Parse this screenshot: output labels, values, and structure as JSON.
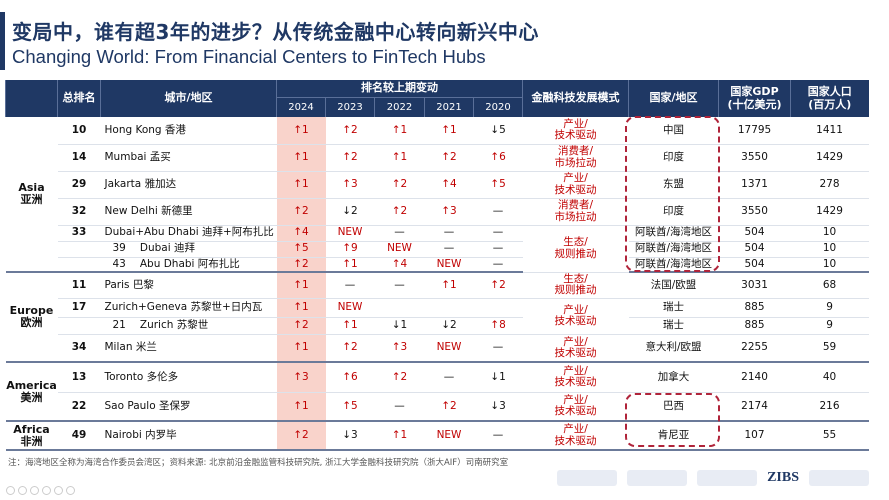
{
  "title_cn": "变局中，谁有超3年的进步？从传统金融中心转向新兴中心",
  "title_en": "Changing World: From Financial Centers to FinTech Hubs",
  "headers": {
    "rank": "总排名",
    "city": "城市/地区",
    "change": "排名较上期变动",
    "years": [
      "2024",
      "2023",
      "2022",
      "2021",
      "2020"
    ],
    "mode": "金融科技发展模式",
    "country": "国家/地区",
    "gdp": "国家GDP\n(十亿美元)",
    "pop": "国家人口\n(百万人)"
  },
  "regions": [
    {
      "label": "Asia\n亚洲",
      "span": 7
    },
    {
      "label": "Europe\n欧洲",
      "span": 4
    },
    {
      "label": "America\n美洲",
      "span": 2
    },
    {
      "label": "Africa\n非洲",
      "span": 1
    }
  ],
  "rows": [
    {
      "rank": "10",
      "city": "Hong Kong  香港",
      "changes": [
        "↑1",
        "↑2",
        "↑1",
        "↑1",
        "↓5"
      ],
      "mode": "产业/\n技术驱动",
      "mode_span": 1,
      "country": "中国",
      "gdp": "17795",
      "pop": "1411"
    },
    {
      "rank": "14",
      "city": "Mumbai  孟买",
      "changes": [
        "↑1",
        "↑2",
        "↑1",
        "↑2",
        "↑6"
      ],
      "mode": "消费者/\n市场拉动",
      "mode_span": 1,
      "country": "印度",
      "gdp": "3550",
      "pop": "1429"
    },
    {
      "rank": "29",
      "city": "Jakarta  雅加达",
      "changes": [
        "↑1",
        "↑3",
        "↑2",
        "↑4",
        "↑5"
      ],
      "mode": "产业/\n技术驱动",
      "mode_span": 1,
      "country": "东盟",
      "gdp": "1371",
      "pop": "278"
    },
    {
      "rank": "32",
      "city": "New Delhi 新德里",
      "changes": [
        "↑2",
        "↓2",
        "↑2",
        "↑3",
        "—"
      ],
      "mode": "消费者/\n市场拉动",
      "mode_span": 1,
      "country": "印度",
      "gdp": "3550",
      "pop": "1429"
    },
    {
      "rank": "33",
      "city": "Dubai+Abu Dhabi  迪拜+阿布扎比",
      "changes": [
        "↑4",
        "NEW",
        "—",
        "—",
        "—"
      ],
      "mode": "生态/\n规则推动",
      "mode_span": 3,
      "country": "阿联酋/海湾地区",
      "gdp": "504",
      "pop": "10"
    },
    {
      "sub": true,
      "rank": "39",
      "city": "Dubai  迪拜",
      "changes": [
        "↑5",
        "↑9",
        "NEW",
        "—",
        "—"
      ],
      "country": "阿联酋/海湾地区",
      "gdp": "504",
      "pop": "10"
    },
    {
      "sub": true,
      "rank": "43",
      "city": "Abu Dhabi  阿布扎比",
      "changes": [
        "↑2",
        "↑1",
        "↑4",
        "NEW",
        "—"
      ],
      "country": "阿联酋/海湾地区",
      "gdp": "504",
      "pop": "10"
    },
    {
      "rank": "11",
      "city": "Paris  巴黎",
      "changes": [
        "↑1",
        "—",
        "—",
        "↑1",
        "↑2"
      ],
      "mode": "生态/\n规则推动",
      "mode_span": 1,
      "country": "法国/欧盟",
      "gdp": "3031",
      "pop": "68"
    },
    {
      "rank": "17",
      "city": "Zurich+Geneva  苏黎世+日内瓦",
      "changes": [
        "↑1",
        "NEW",
        "",
        "",
        ""
      ],
      "mode": "产业/\n技术驱动",
      "mode_span": 2,
      "country": "瑞士",
      "gdp": "885",
      "pop": "9"
    },
    {
      "sub": true,
      "rank": "21",
      "city": "Zurich  苏黎世",
      "changes": [
        "↑2",
        "↑1",
        "↓1",
        "↓2",
        "↑8"
      ],
      "country": "瑞士",
      "gdp": "885",
      "pop": "9"
    },
    {
      "rank": "34",
      "city": "Milan  米兰",
      "changes": [
        "↑1",
        "↑2",
        "↑3",
        "NEW",
        "—"
      ],
      "mode": "产业/\n技术驱动",
      "mode_span": 1,
      "country": "意大利/欧盟",
      "gdp": "2255",
      "pop": "59"
    },
    {
      "rank": "13",
      "city": "Toronto  多伦多",
      "changes": [
        "↑3",
        "↑6",
        "↑2",
        "—",
        "↓1"
      ],
      "mode": "产业/\n技术驱动",
      "mode_span": 1,
      "country": "加拿大",
      "gdp": "2140",
      "pop": "40"
    },
    {
      "rank": "22",
      "city": "Sao Paulo  圣保罗",
      "changes": [
        "↑1",
        "↑5",
        "—",
        "↑2",
        "↓3"
      ],
      "mode": "产业/\n技术驱动",
      "mode_span": 1,
      "country": "巴西",
      "gdp": "2174",
      "pop": "216"
    },
    {
      "rank": "49",
      "city": "Nairobi  内罗毕",
      "changes": [
        "↑2",
        "↓3",
        "↑1",
        "NEW",
        "—"
      ],
      "mode": "产业/\n技术驱动",
      "mode_span": 1,
      "country": "肯尼亚",
      "gdp": "107",
      "pop": "55"
    }
  ],
  "note": "注：海湾地区全称为海湾合作委员会湾区；资料来源: 北京前沿金融监管科技研究院, 浙江大学金融科技研究院（浙大AIF）司南研究室",
  "logo_text": "ZIBS",
  "colors": {
    "header": "#1f3864",
    "accent_red": "#c00000",
    "highlight": "#f9d3cb"
  }
}
